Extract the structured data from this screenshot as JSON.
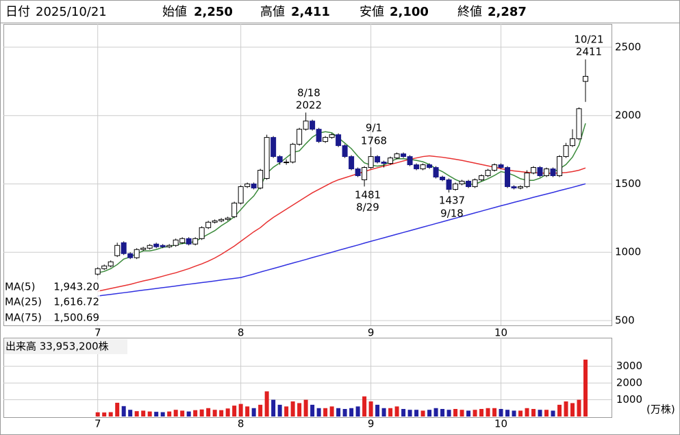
{
  "header": {
    "date_label": "日付",
    "date": "2025/10/21",
    "items": [
      {
        "label": "始値",
        "value": "2,250",
        "color": "#000000"
      },
      {
        "label": "高値",
        "value": "2,411",
        "color": "#e01010"
      },
      {
        "label": "安値",
        "value": "2,100",
        "color": "#108010"
      },
      {
        "label": "終値",
        "value": "2,287",
        "color": "#000000"
      }
    ]
  },
  "chart_data": [
    {
      "type": "candlestick",
      "up_color": "#ffffff",
      "down_color": "#1a1a8c",
      "xlim": [
        -14.5,
        79
      ],
      "xticks": [
        {
          "value": 0,
          "label": "7"
        },
        {
          "value": 22,
          "label": "8"
        },
        {
          "value": 42,
          "label": "9"
        },
        {
          "value": 62,
          "label": "10"
        }
      ],
      "ylim": [
        465,
        2670
      ],
      "yticks": [
        500,
        1000,
        1500,
        2000,
        2500
      ],
      "grid": true,
      "open": [
        840,
        880,
        900,
        975,
        1070,
        990,
        960,
        1020,
        1030,
        1060,
        1050,
        1040,
        1050,
        1070,
        1100,
        1060,
        1100,
        1180,
        1220,
        1230,
        1240,
        1260,
        1360,
        1480,
        1500,
        1470,
        1540,
        1840,
        1700,
        1660,
        1660,
        1790,
        1900,
        1960,
        1900,
        1810,
        1840,
        1860,
        1780,
        1700,
        1610,
        1530,
        1620,
        1700,
        1660,
        1650,
        1690,
        1720,
        1700,
        1640,
        1610,
        1640,
        1620,
        1550,
        1530,
        1460,
        1500,
        1520,
        1480,
        1530,
        1560,
        1600,
        1640,
        1620,
        1480,
        1470,
        1480,
        1580,
        1620,
        1560,
        1610,
        1560,
        1700,
        1780,
        1830,
        2250
      ],
      "high": [
        890,
        910,
        940,
        1070,
        1080,
        1000,
        1030,
        1040,
        1060,
        1070,
        1060,
        1060,
        1100,
        1110,
        1110,
        1110,
        1190,
        1230,
        1240,
        1250,
        1260,
        1370,
        1490,
        1510,
        1510,
        1610,
        1860,
        1850,
        1710,
        1680,
        1800,
        1910,
        2022,
        1970,
        1910,
        1850,
        1870,
        1870,
        1790,
        1710,
        1620,
        1630,
        1768,
        1710,
        1670,
        1700,
        1730,
        1730,
        1710,
        1650,
        1650,
        1650,
        1630,
        1560,
        1540,
        1510,
        1530,
        1530,
        1540,
        1570,
        1610,
        1650,
        1650,
        1630,
        1490,
        1490,
        1600,
        1630,
        1630,
        1620,
        1620,
        1710,
        1800,
        1900,
        2060,
        2411
      ],
      "low": [
        830,
        870,
        890,
        965,
        980,
        950,
        950,
        1010,
        1020,
        1030,
        1030,
        1030,
        1040,
        1060,
        1050,
        1050,
        1090,
        1170,
        1210,
        1220,
        1230,
        1250,
        1350,
        1470,
        1460,
        1460,
        1530,
        1690,
        1640,
        1640,
        1650,
        1780,
        1890,
        1890,
        1800,
        1800,
        1830,
        1770,
        1690,
        1600,
        1550,
        1481,
        1610,
        1650,
        1620,
        1640,
        1680,
        1690,
        1630,
        1600,
        1600,
        1610,
        1540,
        1520,
        1437,
        1450,
        1490,
        1470,
        1470,
        1520,
        1550,
        1590,
        1610,
        1470,
        1460,
        1460,
        1470,
        1570,
        1550,
        1550,
        1550,
        1550,
        1690,
        1770,
        1820,
        2100
      ],
      "close": [
        880,
        900,
        930,
        1050,
        990,
        960,
        1020,
        1030,
        1050,
        1040,
        1040,
        1050,
        1090,
        1100,
        1060,
        1100,
        1180,
        1220,
        1230,
        1240,
        1250,
        1360,
        1480,
        1500,
        1470,
        1600,
        1840,
        1700,
        1660,
        1660,
        1790,
        1900,
        1960,
        1900,
        1810,
        1840,
        1860,
        1780,
        1700,
        1610,
        1560,
        1620,
        1700,
        1660,
        1650,
        1690,
        1720,
        1700,
        1640,
        1610,
        1640,
        1620,
        1550,
        1530,
        1460,
        1500,
        1520,
        1480,
        1530,
        1560,
        1600,
        1640,
        1620,
        1480,
        1470,
        1480,
        1580,
        1620,
        1560,
        1610,
        1560,
        1700,
        1780,
        1830,
        2050,
        2287
      ],
      "lines": [
        {
          "name": "MA(5)",
          "legend_value": "1,943.20",
          "color": "#3a8a3a",
          "values": [
            850,
            860,
            880,
            910,
            950,
            966,
            990,
            1010,
            1010,
            1020,
            1036,
            1042,
            1054,
            1064,
            1068,
            1080,
            1106,
            1132,
            1158,
            1194,
            1224,
            1260,
            1312,
            1366,
            1412,
            1482,
            1578,
            1622,
            1654,
            1692,
            1730,
            1742,
            1794,
            1842,
            1872,
            1882,
            1874,
            1838,
            1798,
            1758,
            1702,
            1654,
            1638,
            1630,
            1638,
            1664,
            1684,
            1684,
            1680,
            1672,
            1662,
            1642,
            1612,
            1590,
            1560,
            1532,
            1512,
            1498,
            1498,
            1518,
            1538,
            1562,
            1590,
            1580,
            1562,
            1538,
            1526,
            1526,
            1542,
            1570,
            1586,
            1610,
            1642,
            1696,
            1784,
            1943.2
          ]
        },
        {
          "name": "MA(25)",
          "legend_value": "1,616.72",
          "color": "#e83030",
          "values": [
            715,
            725,
            735,
            745,
            755,
            765,
            778,
            790,
            800,
            812,
            825,
            838,
            850,
            865,
            880,
            898,
            915,
            935,
            958,
            985,
            1015,
            1045,
            1080,
            1115,
            1150,
            1180,
            1220,
            1255,
            1285,
            1315,
            1345,
            1375,
            1405,
            1435,
            1460,
            1485,
            1510,
            1530,
            1545,
            1560,
            1575,
            1590,
            1605,
            1618,
            1630,
            1642,
            1655,
            1668,
            1680,
            1690,
            1700,
            1705,
            1700,
            1695,
            1688,
            1680,
            1672,
            1662,
            1652,
            1642,
            1632,
            1622,
            1612,
            1602,
            1595,
            1590,
            1585,
            1582,
            1580,
            1578,
            1578,
            1580,
            1583,
            1590,
            1600,
            1616.72
          ]
        },
        {
          "name": "MA(75)",
          "legend_value": "1,500.69",
          "color": "#3030e0",
          "values": [
            680,
            686,
            692,
            698,
            704,
            710,
            717,
            723,
            729,
            735,
            741,
            747,
            753,
            760,
            766,
            772,
            778,
            784,
            790,
            797,
            803,
            809,
            815,
            828,
            841,
            855,
            868,
            881,
            894,
            908,
            921,
            934,
            947,
            961,
            974,
            987,
            1000,
            1014,
            1027,
            1040,
            1053,
            1067,
            1080,
            1093,
            1106,
            1119,
            1132,
            1145,
            1158,
            1171,
            1184,
            1197,
            1210,
            1223,
            1236,
            1249,
            1262,
            1275,
            1288,
            1301,
            1314,
            1327,
            1340,
            1352,
            1365,
            1377,
            1389,
            1402,
            1414,
            1426,
            1438,
            1451,
            1463,
            1475,
            1488,
            1500.69
          ]
        }
      ],
      "annotations": [
        {
          "lines": [
            "10/21",
            "2411"
          ]
        },
        {
          "lines": [
            "8/18",
            "2022"
          ]
        },
        {
          "lines": [
            "9/1",
            "1768"
          ]
        },
        {
          "lines": [
            "1481",
            "8/29"
          ]
        },
        {
          "lines": [
            "1437",
            "9/18"
          ]
        }
      ]
    },
    {
      "type": "bar",
      "title": "出来高 33,953,200株",
      "unit": "(万株)",
      "up_color": "#e02020",
      "down_color": "#2020a0",
      "xlim": [
        -14.5,
        79
      ],
      "xticks": [
        {
          "value": 0,
          "label": "7"
        },
        {
          "value": 22,
          "label": "8"
        },
        {
          "value": 42,
          "label": "9"
        },
        {
          "value": 62,
          "label": "10"
        }
      ],
      "ylim": [
        0,
        4700
      ],
      "yticks": [
        1000,
        2000,
        3000
      ],
      "values": [
        250,
        240,
        260,
        820,
        620,
        400,
        320,
        350,
        300,
        280,
        260,
        300,
        400,
        350,
        300,
        380,
        420,
        500,
        400,
        380,
        480,
        650,
        750,
        600,
        500,
        700,
        1500,
        1000,
        700,
        600,
        900,
        800,
        1000,
        700,
        500,
        500,
        600,
        500,
        450,
        500,
        600,
        1200,
        900,
        700,
        500,
        500,
        600,
        450,
        400,
        400,
        350,
        400,
        500,
        450,
        400,
        450,
        400,
        350,
        400,
        450,
        500,
        500,
        450,
        400,
        350,
        350,
        500,
        450,
        400,
        400,
        350,
        700,
        900,
        800,
        1000,
        3395.32
      ]
    }
  ]
}
